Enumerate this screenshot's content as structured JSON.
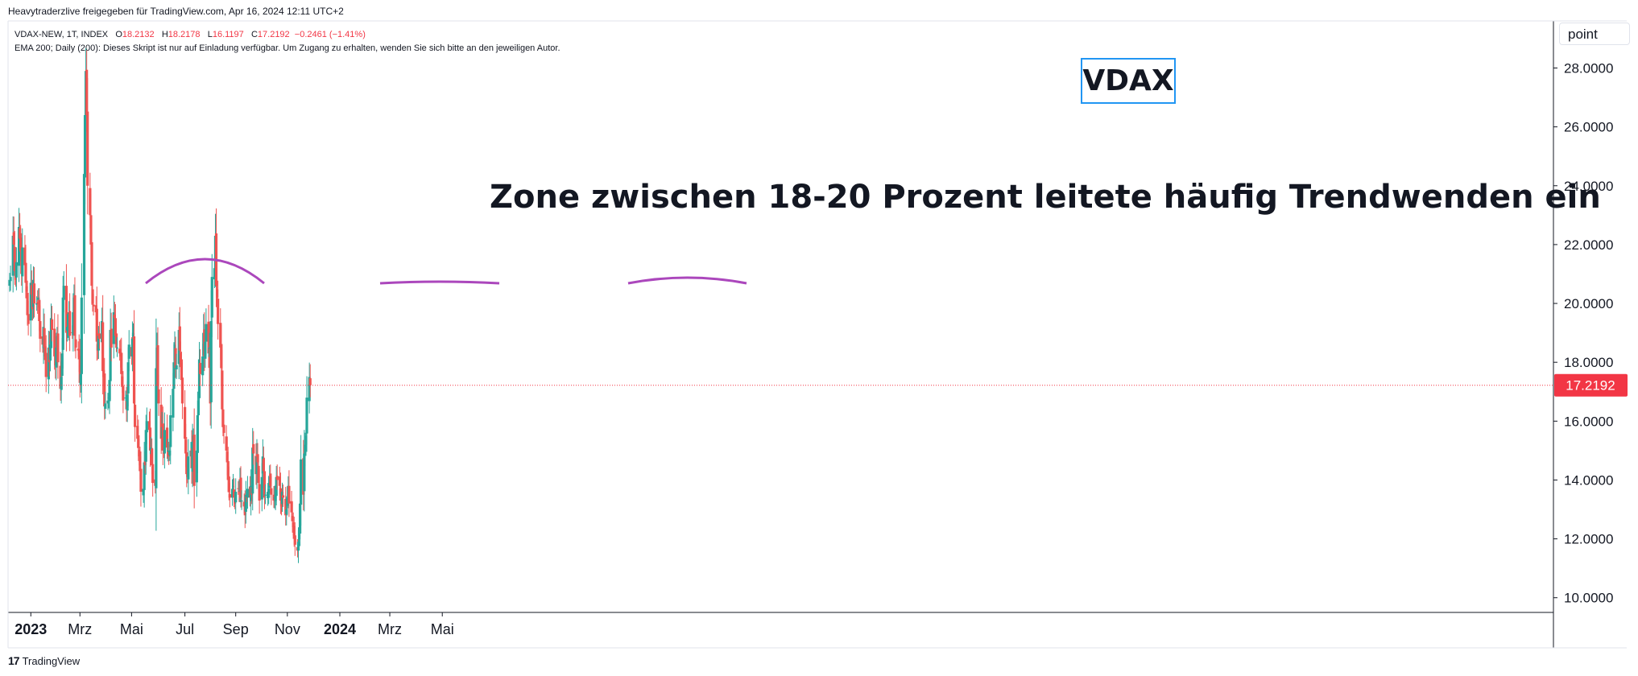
{
  "caption": "Heavytraderzlive freigegeben für TradingView.com, Apr 16, 2024 12:11 UTC+2",
  "legend": {
    "symbol": "VDAX-NEW, 1T, INDEX",
    "open_label": "O",
    "open": "18.2132",
    "high_label": "H",
    "high": "18.2178",
    "low_label": "L",
    "low": "16.1197",
    "close_label": "C",
    "close": "17.2192",
    "change": "−0.2461 (−1.41%)",
    "indicator": "EMA 200; Daily (200): Dieses Skript ist nur auf Einladung verfügbar. Um Zugang zu erhalten, wenden Sie sich bitte an den jeweiligen Autor."
  },
  "price_scale_label": "point",
  "annotations": {
    "title_box": "VDAX",
    "zone_text": "Zone zwischen 18-20 Prozent leitete häufig Trendwenden ein"
  },
  "footer_logo": "TradingView",
  "colors": {
    "up": "#26a69a",
    "down": "#ef5350",
    "arc": "#ab47bc",
    "last_price": "#f23645",
    "title_border": "#2196f3",
    "axis_text": "#131722"
  },
  "chart_data": {
    "type": "candlestick",
    "symbol": "VDAX-NEW",
    "interval": "1T",
    "ylim": [
      9.5,
      29.6
    ],
    "y_ticks": [
      "10.0000",
      "12.0000",
      "14.0000",
      "16.0000",
      "18.0000",
      "20.0000",
      "22.0000",
      "24.0000",
      "26.0000",
      "28.0000"
    ],
    "x_ticks": [
      {
        "label": "2023",
        "date": "2023-01-02",
        "bold": true
      },
      {
        "label": "Mrz",
        "date": "2023-03-01",
        "bold": false
      },
      {
        "label": "Mai",
        "date": "2023-05-01",
        "bold": false
      },
      {
        "label": "Jul",
        "date": "2023-07-03",
        "bold": false
      },
      {
        "label": "Sep",
        "date": "2023-09-01",
        "bold": false
      },
      {
        "label": "Nov",
        "date": "2023-11-01",
        "bold": false
      },
      {
        "label": "2024",
        "date": "2024-01-02",
        "bold": true
      },
      {
        "label": "Mrz",
        "date": "2024-03-01",
        "bold": false
      },
      {
        "label": "Mai",
        "date": "2024-05-02",
        "bold": false
      }
    ],
    "last_price": 17.2192,
    "last_price_label": "17.2192",
    "series_start": "2022-12-08",
    "closes": [
      20.8,
      20.9,
      22.3,
      22.0,
      21.1,
      20.8,
      21.4,
      22.6,
      22.2,
      21.8,
      21.0,
      21.9,
      21.3,
      20.7,
      20.4,
      19.6,
      19.3,
      20.7,
      20.3,
      19.8,
      20.8,
      20.0,
      20.0,
      20.0,
      20.2,
      19.4,
      18.8,
      18.6,
      19.2,
      18.5,
      18.2,
      17.5,
      18.5,
      18.0,
      18.6,
      19.5,
      19.1,
      18.2,
      17.9,
      18.5,
      18.9,
      18.0,
      17.1,
      17.5,
      18.3,
      20.2,
      20.6,
      19.0,
      19.2,
      19.1,
      19.7,
      18.9,
      19.0,
      19.7,
      20.2,
      18.9,
      18.5,
      18.4,
      18.1,
      17.3,
      17.6,
      20.2,
      24.4,
      26.4,
      27.9,
      26.4,
      24.0,
      23.0,
      22.0,
      20.6,
      20.0,
      19.9,
      19.7,
      18.7,
      18.4,
      18.9,
      18.8,
      19.4,
      17.7,
      17.5,
      16.5,
      16.6,
      16.7,
      16.8,
      17.4,
      19.1,
      18.5,
      19.7,
      19.5,
      18.9,
      18.6,
      18.5,
      18.3,
      18.2,
      17.6,
      17.2,
      16.7,
      16.8,
      16.4,
      16.9,
      18.0,
      18.6,
      18.2,
      18.8,
      19.0,
      16.6,
      15.8,
      15.4,
      15.1,
      14.8,
      14.3,
      13.6,
      13.7,
      14.6,
      14.5,
      15.7,
      16.0,
      15.7,
      15.0,
      15.1,
      14.5,
      13.9,
      13.8,
      17.8,
      18.5,
      17.2,
      16.6,
      15.4,
      15.8,
      15.0,
      14.9,
      15.7,
      15.1,
      15.0,
      14.8,
      15.0,
      16.2,
      17.1,
      18.0,
      18.6,
      17.8,
      17.9,
      19.1,
      18.4,
      18.0,
      17.4,
      16.6,
      15.4,
      14.9,
      14.2,
      14.1,
      14.8,
      15.0,
      14.4,
      15.3,
      15.5,
      13.8,
      15.0,
      16.2,
      16.7,
      18.1,
      17.6,
      18.2,
      19.0,
      18.2,
      18.7,
      19.3,
      18.3,
      18.5,
      16.6,
      19.4,
      20.9,
      21.2,
      22.3,
      20.6,
      20.2,
      19.3,
      18.5,
      17.8,
      16.4,
      15.8,
      15.6,
      15.0,
      14.6,
      14.0,
      13.6,
      13.4,
      13.7,
      13.8,
      13.4,
      13.2,
      13.6,
      13.7,
      13.6,
      14.0,
      13.4,
      13.3,
      13.1,
      12.8,
      13.5,
      13.4,
      13.7,
      13.4,
      13.8,
      13.5,
      15.1,
      14.9,
      14.2,
      14.8,
      14.6,
      13.9,
      13.3,
      14.1,
      14.8,
      14.3,
      13.4,
      13.5,
      13.6,
      13.7,
      14.1,
      13.8,
      13.5,
      13.3,
      13.4,
      13.5,
      14.1,
      14.0,
      13.8,
      13.3,
      13.1,
      13.6,
      13.4,
      12.8,
      13.0,
      13.4,
      13.8,
      13.2,
      12.9,
      12.6,
      12.4,
      12.0,
      11.8,
      11.6,
      11.9,
      12.3,
      13.2,
      14.7,
      13.5,
      14.9,
      15.2,
      15.5,
      16.8,
      17.5,
      17.2192
    ]
  }
}
